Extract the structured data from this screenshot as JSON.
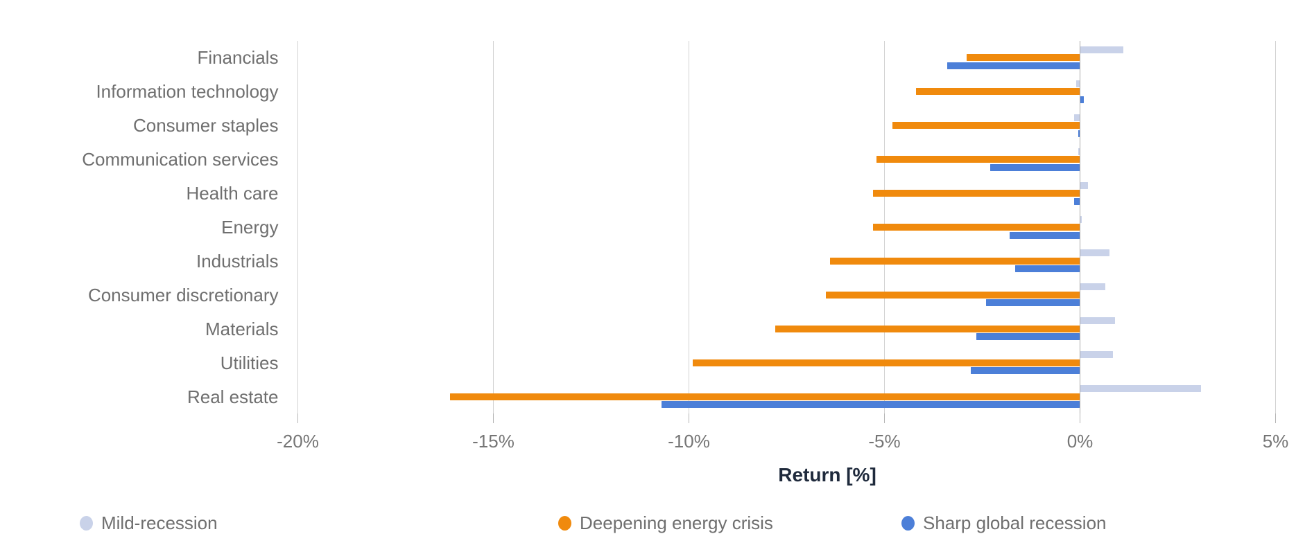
{
  "chart_data": {
    "type": "bar",
    "orientation": "horizontal",
    "title": "",
    "xlabel": "Return [%]",
    "ylabel": "",
    "xlim": [
      -20,
      5
    ],
    "grid": true,
    "legend_position": "bottom",
    "xticks": [
      {
        "value": -20,
        "label": "-20%"
      },
      {
        "value": -15,
        "label": "-15%"
      },
      {
        "value": -10,
        "label": "-10%"
      },
      {
        "value": -5,
        "label": "-5%"
      },
      {
        "value": 0,
        "label": "0%"
      },
      {
        "value": 5,
        "label": "5%"
      }
    ],
    "categories": [
      "Financials",
      "Information technology",
      "Consumer staples",
      "Communication services",
      "Health care",
      "Energy",
      "Industrials",
      "Consumer discretionary",
      "Materials",
      "Utilities",
      "Real estate"
    ],
    "series": [
      {
        "name": "Mild-recession",
        "color": "#C9D2E9",
        "values": [
          1.1,
          -0.1,
          -0.15,
          -0.05,
          0.2,
          0.05,
          0.75,
          0.65,
          0.9,
          0.85,
          3.1
        ]
      },
      {
        "name": "Deepening energy crisis",
        "color": "#F08A0D",
        "values": [
          -2.9,
          -4.2,
          -4.8,
          -5.2,
          -5.3,
          -5.3,
          -6.4,
          -6.5,
          -7.8,
          -9.9,
          -16.1
        ]
      },
      {
        "name": "Sharp global recession",
        "color": "#4C7FD8",
        "values": [
          -3.4,
          0.1,
          -0.05,
          -2.3,
          -0.15,
          -1.8,
          -1.65,
          -2.4,
          -2.65,
          -2.8,
          -10.7
        ]
      }
    ]
  }
}
